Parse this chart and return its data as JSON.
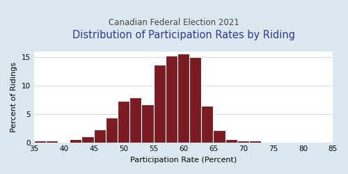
{
  "title": "Distribution of Participation Rates by Riding",
  "subtitle": "Canadian Federal Election 2021",
  "xlabel": "Participation Rate (Percent)",
  "ylabel": "Percent of Ridings",
  "bar_color": "#7B1C22",
  "edge_color": "#ffffff",
  "background_color": "#dce8f0",
  "plot_background": "#ffffff",
  "xlim": [
    35,
    85
  ],
  "ylim": [
    0,
    16
  ],
  "xticks": [
    35,
    40,
    45,
    50,
    55,
    60,
    65,
    70,
    75,
    80,
    85
  ],
  "yticks": [
    0,
    5,
    10,
    15
  ],
  "bin_edges": [
    35,
    37,
    39,
    41,
    43,
    45,
    47,
    49,
    51,
    53,
    55,
    57,
    59,
    61,
    63,
    65,
    67,
    69,
    71,
    73,
    75,
    77,
    79,
    81,
    83,
    85
  ],
  "bar_heights": [
    0.3,
    0.3,
    0.0,
    0.6,
    1.0,
    2.3,
    4.3,
    7.3,
    7.9,
    6.7,
    13.7,
    15.2,
    15.6,
    15.0,
    6.5,
    2.2,
    0.6,
    0.3,
    0.3,
    0.0,
    0.0,
    0.0,
    0.0,
    0.0,
    0.0
  ],
  "title_color": "#2B3990",
  "subtitle_color": "#444444",
  "title_fontsize": 10.5,
  "subtitle_fontsize": 8.5,
  "axis_label_fontsize": 8,
  "tick_fontsize": 7.5
}
